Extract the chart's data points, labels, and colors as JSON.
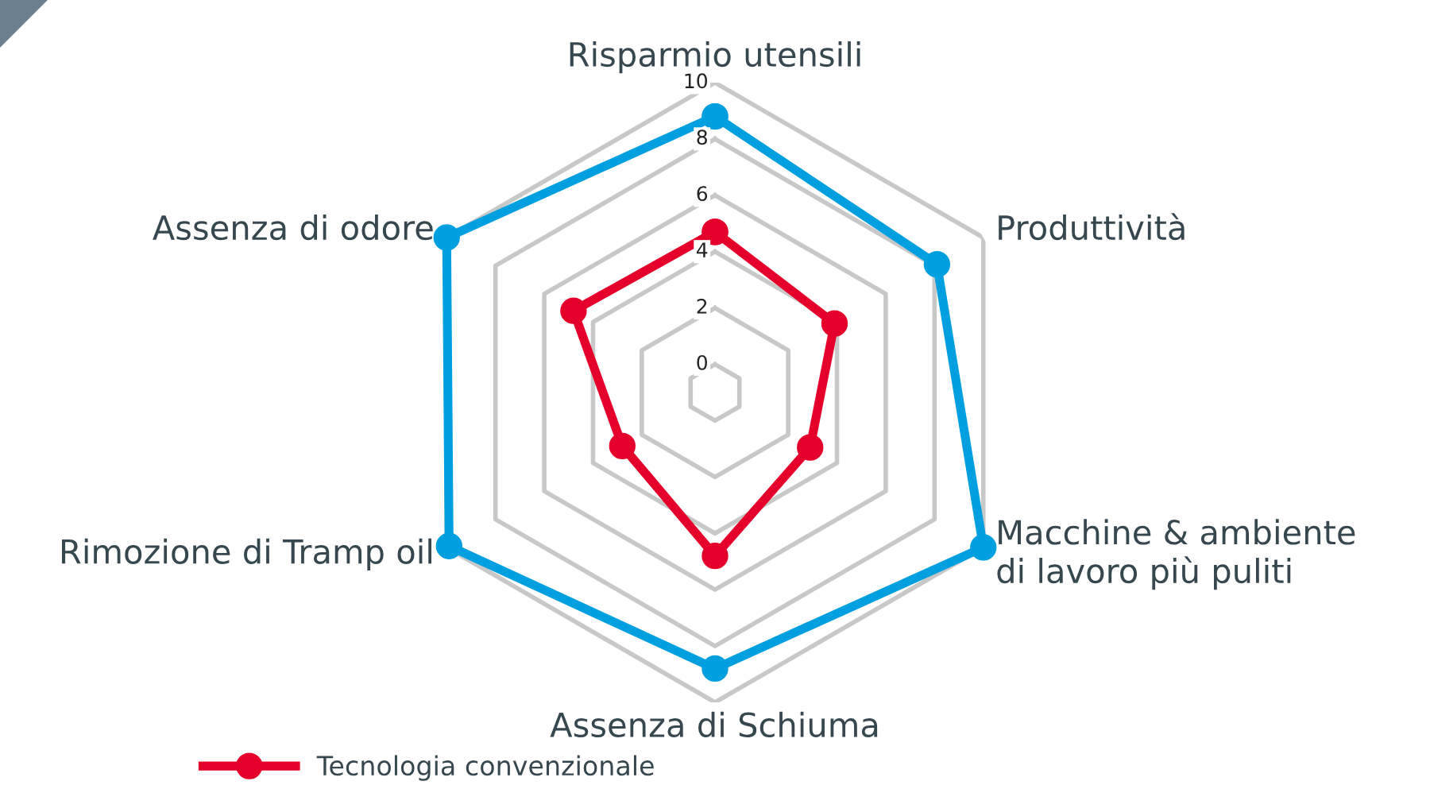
{
  "chart_data": {
    "type": "radar",
    "categories": [
      "Risparmio utensili",
      "Produttività",
      "Macchine & ambiente\ndi lavoro più puliti",
      "Assenza di Schiuma",
      "Rimozione di Tramp oil",
      "Assenza di odore"
    ],
    "series": [
      {
        "name": "Tecnologia convenzionale",
        "color": "#e4002b",
        "values": [
          4.7,
          3.9,
          2.9,
          4.8,
          2.8,
          4.8
        ]
      },
      {
        "color": "#009fdf",
        "values": [
          8.8,
          8.1,
          10.0,
          8.8,
          9.9,
          10.0
        ]
      }
    ],
    "ylim": [
      -1,
      10
    ],
    "yticks": [
      0,
      2,
      4,
      6,
      8,
      10
    ],
    "grid": true,
    "legend": "bottom",
    "marker": "circle",
    "line_style": "solid"
  }
}
